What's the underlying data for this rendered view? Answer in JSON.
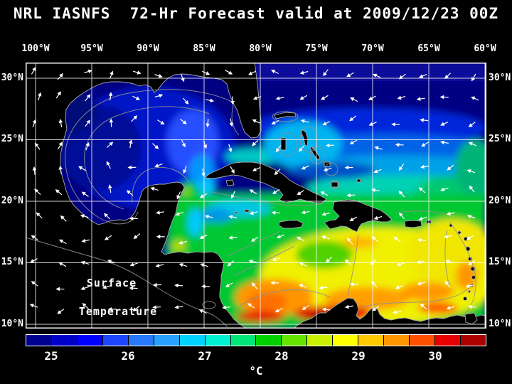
{
  "title": "NRL IASNFS  72-Hr Forecast valid at 2009/12/23 00Z",
  "map": {
    "top_axis": [
      "100°W",
      "95°W",
      "90°W",
      "85°W",
      "80°W",
      "75°W",
      "70°W",
      "65°W",
      "60°W"
    ],
    "left_axis": [
      "30°N",
      "25°N",
      "20°N",
      "15°N",
      "10°N"
    ],
    "right_axis": [
      "30°N",
      "25°N",
      "20°N",
      "15°N",
      "10°N"
    ],
    "annotation_line1": "Surface",
    "annotation_line2": "Temperature"
  },
  "colorbar": {
    "tick_labels": [
      "25",
      "26",
      "27",
      "28",
      "29",
      "30"
    ],
    "unit": "°C",
    "segments": [
      "#000090",
      "#0000c8",
      "#0000ff",
      "#1e46ff",
      "#2878ff",
      "#28a0ff",
      "#00d2ff",
      "#00f0d2",
      "#00e678",
      "#00d200",
      "#64e600",
      "#c8f000",
      "#ffff00",
      "#ffc800",
      "#ff9600",
      "#ff5000",
      "#e60000",
      "#aa0000"
    ]
  },
  "chart_data": {
    "type": "heatmap",
    "title": "NRL IASNFS 72-Hr Forecast valid at 2009/12/23 00Z",
    "variable": "Surface Temperature",
    "unit": "°C",
    "lon_ticks_deg_w": [
      100,
      95,
      90,
      85,
      80,
      75,
      70,
      65,
      60
    ],
    "lat_ticks_deg_n": [
      30,
      25,
      20,
      15,
      10
    ],
    "colorbar_ticks": [
      25,
      26,
      27,
      28,
      29,
      30
    ],
    "legend_position": "bottom"
  }
}
